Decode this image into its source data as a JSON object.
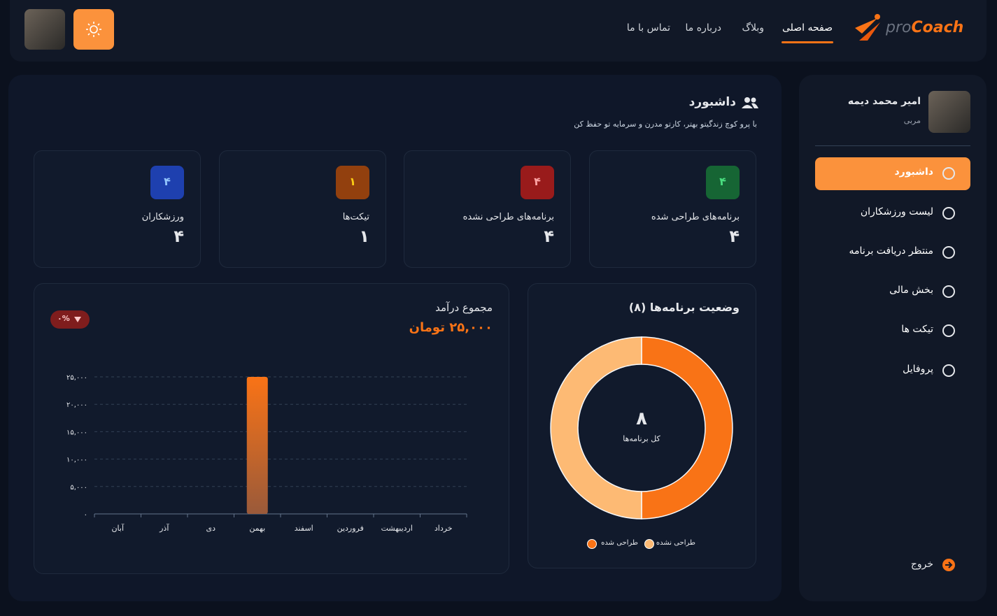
{
  "header": {
    "logo_prefix": "pro",
    "logo_suffix": "Coach",
    "nav": [
      "صفحه اصلی",
      "وبلاگ",
      "درباره ما",
      "تماس با ما"
    ]
  },
  "sidebar": {
    "user_name": "امیر محمد دیمه",
    "user_role": "مربی",
    "menu": [
      "داشبورد",
      "لیست ورزشکاران",
      "منتظر دریافت برنامه",
      "بخش مالی",
      "تیکت ها",
      "پروفایل"
    ],
    "logout": "خروج"
  },
  "main": {
    "title": "داشبورد",
    "subtitle": "با پرو کوچ زندگیتو بهتر، کارتو مدرن و سرمایه تو حفظ کن",
    "stats": [
      {
        "badge": "۴",
        "label": "برنامه‌های طراحی شده",
        "value": "۴"
      },
      {
        "badge": "۴",
        "label": "برنامه‌های طراحی نشده",
        "value": "۴"
      },
      {
        "badge": "۱",
        "label": "تیکت‌ها",
        "value": "۱"
      },
      {
        "badge": "۴",
        "label": "ورزشکاران",
        "value": "۴"
      }
    ]
  },
  "chart_data": [
    {
      "type": "bar",
      "title": "مجموع درآمد",
      "total": "۲۵,۰۰۰ تومان",
      "change": "۰%",
      "categories": [
        "آبان",
        "آذر",
        "دی",
        "بهمن",
        "اسفند",
        "فروردین",
        "اردیبهشت",
        "خرداد"
      ],
      "values": [
        0,
        0,
        0,
        25000,
        0,
        0,
        0,
        0
      ],
      "color": "#f97316",
      "ylim": [
        0,
        25000
      ],
      "yticks": [
        {
          "value": 0,
          "label": "۰"
        },
        {
          "value": 5000,
          "label": "۵,۰۰۰"
        },
        {
          "value": 10000,
          "label": "۱۰,۰۰۰"
        },
        {
          "value": 15000,
          "label": "۱۵,۰۰۰"
        },
        {
          "value": 20000,
          "label": "۲۰,۰۰۰"
        },
        {
          "value": 25000,
          "label": "۲۵,۰۰۰"
        }
      ],
      "grid": true
    },
    {
      "type": "pie",
      "title": "وضعیت برنامه‌ها (۸)",
      "center_value": "۸",
      "center_label": "کل برنامه‌ها",
      "categories": [
        "طراحی شده",
        "طراحی نشده"
      ],
      "values": [
        4,
        4
      ],
      "colors": [
        "#f97316",
        "#fdba74"
      ]
    }
  ]
}
